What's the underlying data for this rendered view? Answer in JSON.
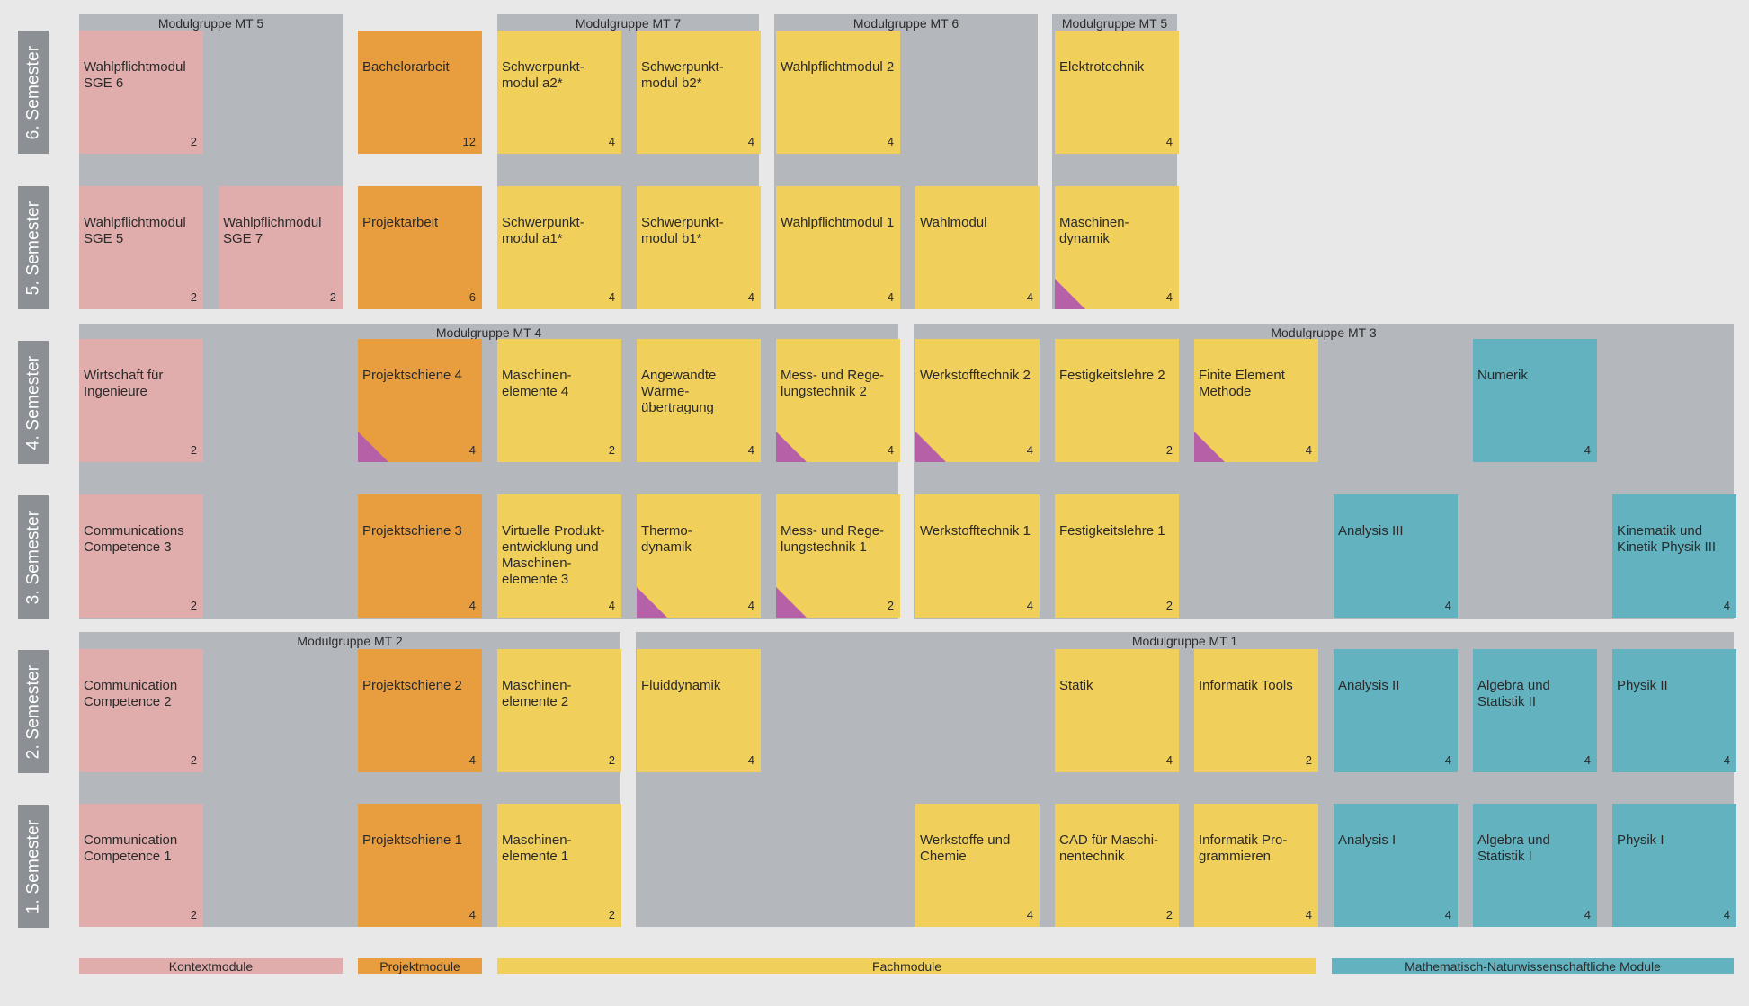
{
  "colors": {
    "kontext": "#e0adac",
    "projekt": "#e89d3e",
    "fach": "#f1cf5b",
    "mathe": "#63b2c0",
    "group_bg": "#b4b7bc",
    "marker": "#b660a8"
  },
  "semesters": [
    {
      "id": "s6",
      "label": "6. Semester"
    },
    {
      "id": "s5",
      "label": "5. Semester"
    },
    {
      "id": "s4",
      "label": "4. Semester"
    },
    {
      "id": "s3",
      "label": "3. Semester"
    },
    {
      "id": "s2",
      "label": "2. Semester"
    },
    {
      "id": "s1",
      "label": "1. Semester"
    }
  ],
  "groups": [
    {
      "id": "g-mt5a",
      "title": "Modulgruppe MT 5"
    },
    {
      "id": "g-mt7",
      "title": "Modulgruppe MT 7"
    },
    {
      "id": "g-mt6",
      "title": "Modulgruppe MT 6"
    },
    {
      "id": "g-mt5b",
      "title": "Modulgruppe MT 5"
    },
    {
      "id": "g-mt4",
      "title": "Modulgruppe MT 4"
    },
    {
      "id": "g-mt3",
      "title": "Modulgruppe MT 3"
    },
    {
      "id": "g-mt2",
      "title": "Modulgruppe MT 2"
    },
    {
      "id": "g-mt1",
      "title": "Modulgruppe MT 1"
    }
  ],
  "modules": [
    {
      "id": "m1",
      "name": "Wahlpflichtmodul\nSGE 6",
      "credits": "2",
      "category": "kontext",
      "marker": false
    },
    {
      "id": "m2",
      "name": "Bachelorarbeit",
      "credits": "12",
      "category": "projekt",
      "marker": false
    },
    {
      "id": "m3",
      "name": "Schwerpunkt-\nmodul a2*",
      "credits": "4",
      "category": "fach",
      "marker": false
    },
    {
      "id": "m4",
      "name": "Schwerpunkt-\nmodul b2*",
      "credits": "4",
      "category": "fach",
      "marker": false
    },
    {
      "id": "m5",
      "name": "Wahlpflichtmodul 2",
      "credits": "4",
      "category": "fach",
      "marker": false
    },
    {
      "id": "m6",
      "name": "Elektrotechnik",
      "credits": "4",
      "category": "fach",
      "marker": false
    },
    {
      "id": "m7",
      "name": "Wahlpflichtmodul\nSGE 5",
      "credits": "2",
      "category": "kontext",
      "marker": false
    },
    {
      "id": "m8",
      "name": "Wahlpflichmodul\nSGE 7",
      "credits": "2",
      "category": "kontext",
      "marker": false
    },
    {
      "id": "m9",
      "name": "Projektarbeit",
      "credits": "6",
      "category": "projekt",
      "marker": false
    },
    {
      "id": "m10",
      "name": "Schwerpunkt-\nmodul a1*",
      "credits": "4",
      "category": "fach",
      "marker": false
    },
    {
      "id": "m11",
      "name": "Schwerpunkt-\nmodul b1*",
      "credits": "4",
      "category": "fach",
      "marker": false
    },
    {
      "id": "m12",
      "name": "Wahlpflichtmodul 1",
      "credits": "4",
      "category": "fach",
      "marker": false
    },
    {
      "id": "m13",
      "name": "Wahlmodul",
      "credits": "4",
      "category": "fach",
      "marker": false
    },
    {
      "id": "m14",
      "name": "Maschinen-\ndynamik",
      "credits": "4",
      "category": "fach",
      "marker": true
    },
    {
      "id": "m15",
      "name": "Wirtschaft für\nIngenieure",
      "credits": "2",
      "category": "kontext",
      "marker": false
    },
    {
      "id": "m16",
      "name": "Projektschiene 4",
      "credits": "4",
      "category": "projekt",
      "marker": true
    },
    {
      "id": "m17",
      "name": "Maschinen-\nelemente 4",
      "credits": "2",
      "category": "fach",
      "marker": false
    },
    {
      "id": "m18",
      "name": "Angewandte\nWärme-\nübertragung",
      "credits": "4",
      "category": "fach",
      "marker": false
    },
    {
      "id": "m19",
      "name": "Mess- und Rege-\nlungstechnik 2",
      "credits": "4",
      "category": "fach",
      "marker": true
    },
    {
      "id": "m20",
      "name": "Werkstofftechnik 2",
      "credits": "4",
      "category": "fach",
      "marker": true
    },
    {
      "id": "m21",
      "name": "Festigkeitslehre 2",
      "credits": "2",
      "category": "fach",
      "marker": false
    },
    {
      "id": "m22",
      "name": "Finite Element\nMethode",
      "credits": "4",
      "category": "fach",
      "marker": true
    },
    {
      "id": "m23",
      "name": "Numerik",
      "credits": "4",
      "category": "mathe",
      "marker": false
    },
    {
      "id": "m24",
      "name": "Communications\nCompetence 3",
      "credits": "2",
      "category": "kontext",
      "marker": false
    },
    {
      "id": "m25",
      "name": "Projektschiene 3",
      "credits": "4",
      "category": "projekt",
      "marker": false
    },
    {
      "id": "m26",
      "name": "Virtuelle Produkt-\nentwicklung und\nMaschinen-\nelemente 3",
      "credits": "4",
      "category": "fach",
      "marker": false
    },
    {
      "id": "m27",
      "name": "Thermo-\ndynamik",
      "credits": "4",
      "category": "fach",
      "marker": true
    },
    {
      "id": "m28",
      "name": "Mess- und Rege-\nlungstechnik 1",
      "credits": "2",
      "category": "fach",
      "marker": true
    },
    {
      "id": "m29",
      "name": "Werkstofftechnik 1",
      "credits": "4",
      "category": "fach",
      "marker": false
    },
    {
      "id": "m30",
      "name": "Festigkeitslehre 1",
      "credits": "2",
      "category": "fach",
      "marker": false
    },
    {
      "id": "m31",
      "name": "Analysis III",
      "credits": "4",
      "category": "mathe",
      "marker": false
    },
    {
      "id": "m32",
      "name": "Kinematik und\nKinetik Physik III",
      "credits": "4",
      "category": "mathe",
      "marker": false
    },
    {
      "id": "m33",
      "name": "Communication\nCompetence 2",
      "credits": "2",
      "category": "kontext",
      "marker": false
    },
    {
      "id": "m34",
      "name": "Projektschiene 2",
      "credits": "4",
      "category": "projekt",
      "marker": false
    },
    {
      "id": "m35",
      "name": "Maschinen-\nelemente 2",
      "credits": "2",
      "category": "fach",
      "marker": false
    },
    {
      "id": "m36",
      "name": "Fluiddynamik",
      "credits": "4",
      "category": "fach",
      "marker": false
    },
    {
      "id": "m37",
      "name": "Statik",
      "credits": "4",
      "category": "fach",
      "marker": false
    },
    {
      "id": "m38",
      "name": "Informatik Tools",
      "credits": "2",
      "category": "fach",
      "marker": false
    },
    {
      "id": "m39",
      "name": "Analysis II",
      "credits": "4",
      "category": "mathe",
      "marker": false
    },
    {
      "id": "m40",
      "name": "Algebra und\nStatistik II",
      "credits": "4",
      "category": "mathe",
      "marker": false
    },
    {
      "id": "m41",
      "name": "Physik II",
      "credits": "4",
      "category": "mathe",
      "marker": false
    },
    {
      "id": "m42",
      "name": "Communication\nCompetence 1",
      "credits": "2",
      "category": "kontext",
      "marker": false
    },
    {
      "id": "m43",
      "name": "Projektschiene 1",
      "credits": "4",
      "category": "projekt",
      "marker": false
    },
    {
      "id": "m44",
      "name": "Maschinen-\nelemente 1",
      "credits": "2",
      "category": "fach",
      "marker": false
    },
    {
      "id": "m45",
      "name": "Werkstoffe und\nChemie",
      "credits": "4",
      "category": "fach",
      "marker": false
    },
    {
      "id": "m46",
      "name": "CAD für Maschi-\nnentechnik",
      "credits": "2",
      "category": "fach",
      "marker": false
    },
    {
      "id": "m47",
      "name": "Informatik Pro-\ngrammieren",
      "credits": "4",
      "category": "fach",
      "marker": false
    },
    {
      "id": "m48",
      "name": "Analysis I",
      "credits": "4",
      "category": "mathe",
      "marker": false
    },
    {
      "id": "m49",
      "name": "Algebra und\nStatistik I",
      "credits": "4",
      "category": "mathe",
      "marker": false
    },
    {
      "id": "m50",
      "name": "Physik I",
      "credits": "4",
      "category": "mathe",
      "marker": false
    }
  ],
  "legend": [
    {
      "id": "l-kontext",
      "label": "Kontextmodule",
      "category": "kontext"
    },
    {
      "id": "l-projekt",
      "label": "Projektmodule",
      "category": "projekt"
    },
    {
      "id": "l-fach",
      "label": "Fachmodule",
      "category": "fach"
    },
    {
      "id": "l-mathe",
      "label": "Mathematisch-Naturwissenschaftliche Module",
      "category": "mathe"
    }
  ]
}
